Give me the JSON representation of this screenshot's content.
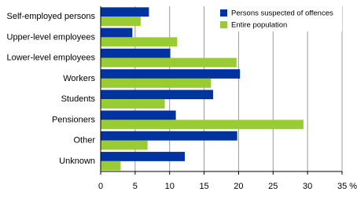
{
  "chart_data": {
    "type": "hbar",
    "categories": [
      "Self-employed persons",
      "Upper-level employees",
      "Lower-level employees",
      "Workers",
      "Students",
      "Pensioners",
      "Other",
      "Unknown"
    ],
    "series": [
      {
        "name": "Persons suspected of offences",
        "color": "#0033a0",
        "values": [
          7.0,
          4.6,
          10.1,
          20.2,
          16.3,
          10.9,
          19.8,
          12.2
        ]
      },
      {
        "name": "Entire population",
        "color": "#99cc33",
        "values": [
          5.8,
          11.1,
          19.7,
          16.0,
          9.3,
          29.4,
          6.8,
          2.9
        ]
      }
    ],
    "xlim": [
      0,
      35
    ],
    "xticks": [
      0,
      5,
      10,
      15,
      20,
      25,
      30,
      {
        "value": 35,
        "label": "35 %"
      }
    ],
    "grid": true,
    "legend": "top-right"
  }
}
